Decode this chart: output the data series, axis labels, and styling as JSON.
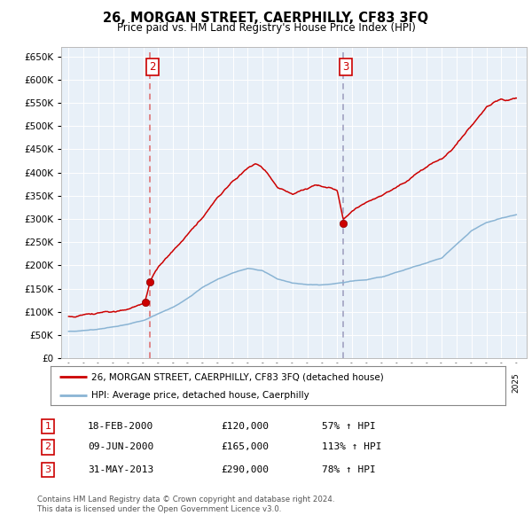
{
  "title": "26, MORGAN STREET, CAERPHILLY, CF83 3FQ",
  "subtitle": "Price paid vs. HM Land Registry's House Price Index (HPI)",
  "legend_line1": "26, MORGAN STREET, CAERPHILLY, CF83 3FQ (detached house)",
  "legend_line2": "HPI: Average price, detached house, Caerphilly",
  "hpi_color": "#8ab4d4",
  "price_color": "#cc0000",
  "bg_color": "#e8f0f8",
  "vline2_color": "#dd6666",
  "vline3_color": "#9999bb",
  "sale1_date_num": 2000.12,
  "sale1_price": 120000,
  "sale2_date_num": 2000.46,
  "sale2_price": 165000,
  "sale3_date_num": 2013.41,
  "sale3_price": 290000,
  "table_rows": [
    {
      "num": "1",
      "date": "18-FEB-2000",
      "price": "£120,000",
      "change": "57% ↑ HPI"
    },
    {
      "num": "2",
      "date": "09-JUN-2000",
      "price": "£165,000",
      "change": "113% ↑ HPI"
    },
    {
      "num": "3",
      "date": "31-MAY-2013",
      "price": "£290,000",
      "change": "78% ↑ HPI"
    }
  ],
  "footer1": "Contains HM Land Registry data © Crown copyright and database right 2024.",
  "footer2": "This data is licensed under the Open Government Licence v3.0.",
  "ylim_max": 670000,
  "yticks": [
    0,
    50000,
    100000,
    150000,
    200000,
    250000,
    300000,
    350000,
    400000,
    450000,
    500000,
    550000,
    600000,
    650000
  ],
  "xlim_start": 1994.5,
  "xlim_end": 2025.7
}
